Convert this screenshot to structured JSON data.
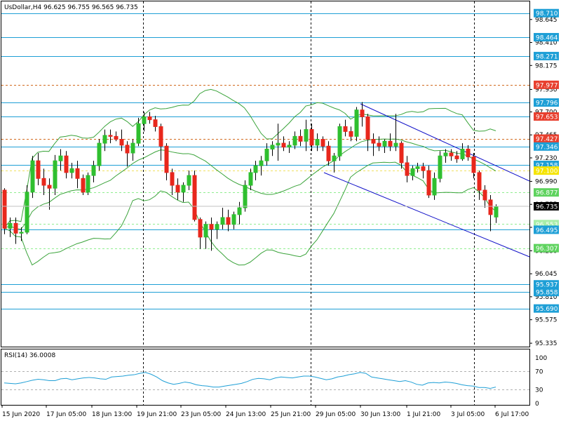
{
  "chart_data": {
    "type": "candlestick",
    "title": "UsDollar,H4  96.625 96.755 96.565 96.735",
    "symbol": "UsDollar,H4",
    "ohlc_readout": "96.625 96.755 96.565 96.735",
    "current_price": "96.735",
    "y_range": [
      95.3,
      98.83
    ],
    "price_ticks": [
      "98.645",
      "98.410",
      "98.175",
      "97.930",
      "97.700",
      "97.465",
      "97.230",
      "96.990",
      "96.755",
      "96.520",
      "96.280",
      "96.045",
      "95.810",
      "95.575",
      "95.335"
    ],
    "x_labels": [
      "15 Jun 2020",
      "17 Jun 05:00",
      "18 Jun 13:00",
      "19 Jun 21:00",
      "23 Jun 05:00",
      "24 Jun 13:00",
      "25 Jun 21:00",
      "29 Jun 05:00",
      "30 Jun 13:00",
      "1 Jul 21:00",
      "3 Jul 05:00",
      "6 Jul 17:00"
    ],
    "levels": [
      {
        "value": 98.71,
        "label": "98.710",
        "style": "solid",
        "color": "#1e9fd6"
      },
      {
        "value": 98.464,
        "label": "98.464",
        "style": "solid",
        "color": "#1e9fd6"
      },
      {
        "value": 98.271,
        "label": "98.271",
        "style": "solid",
        "color": "#1e9fd6"
      },
      {
        "value": 97.977,
        "label": "97.977",
        "style": "dash",
        "color": "#d2691e",
        "tag": "#e8402f"
      },
      {
        "value": 97.796,
        "label": "97.796",
        "style": "solid",
        "color": "#1e9fd6"
      },
      {
        "value": 97.653,
        "label": "97.653",
        "style": "solid",
        "color": "#1e9fd6",
        "tag": "#e8402f"
      },
      {
        "value": 97.427,
        "label": "97.427",
        "style": "dash",
        "color": "#d2691e",
        "tag": "#e8402f"
      },
      {
        "value": 97.346,
        "label": "97.346",
        "style": "solid",
        "color": "#1e9fd6"
      },
      {
        "value": 97.158,
        "label": "97.158",
        "style": "solid",
        "color": "#1e9fd6"
      },
      {
        "value": 97.1,
        "label": "97.100",
        "style": "dash",
        "color": "#f0e060",
        "tag": "#f5e400"
      },
      {
        "value": 96.877,
        "label": "96.877",
        "style": "dash",
        "color": "#90ee90",
        "tag": "#5fd35f"
      },
      {
        "value": 96.553,
        "label": "96.553",
        "style": "dash",
        "color": "#90ee90",
        "tag": "#a8eea8"
      },
      {
        "value": 96.495,
        "label": "96.495",
        "style": "solid",
        "color": "#1e9fd6"
      },
      {
        "value": 96.307,
        "label": "96.307",
        "style": "dash",
        "color": "#90ee90",
        "tag": "#5fd35f"
      },
      {
        "value": 95.937,
        "label": "95.937",
        "style": "solid",
        "color": "#1e9fd6"
      },
      {
        "value": 95.858,
        "label": "95.858",
        "style": "solid",
        "color": "#1e9fd6"
      },
      {
        "value": 95.69,
        "label": "95.690",
        "style": "solid",
        "color": "#1e9fd6"
      }
    ],
    "colors": {
      "bull": "#2fbf2f",
      "bear": "#e8271c",
      "bollinger": "#3aa33a",
      "channel": "#1010c8",
      "level": "#1e9fd6"
    },
    "rsi": {
      "label": "RSI(14) 36.0008",
      "ticks": [
        "100",
        "70",
        "30",
        "0"
      ],
      "values": [
        45,
        44,
        43,
        45,
        48,
        51,
        53,
        52,
        50,
        50,
        54,
        55,
        52,
        54,
        56,
        57,
        56,
        54,
        53,
        58,
        59,
        60,
        62,
        63,
        66,
        68,
        64,
        58,
        50,
        45,
        42,
        44,
        47,
        45,
        41,
        39,
        38,
        36,
        36,
        38,
        40,
        42,
        44,
        48,
        53,
        55,
        54,
        52,
        56,
        58,
        57,
        56,
        58,
        60,
        60,
        58,
        55,
        52,
        54,
        58,
        60,
        63,
        65,
        68,
        66,
        58,
        56,
        54,
        52,
        50,
        48,
        50,
        47,
        42,
        40,
        45,
        46,
        45,
        47,
        46,
        44,
        41,
        39,
        38,
        35,
        35,
        33,
        36
      ]
    },
    "candles": [
      [
        96.9,
        96.92,
        96.45,
        96.51
      ],
      [
        96.51,
        96.62,
        96.42,
        96.56
      ],
      [
        96.56,
        96.62,
        96.35,
        96.46
      ],
      [
        96.46,
        96.52,
        96.38,
        96.47
      ],
      [
        96.47,
        96.95,
        96.45,
        96.88
      ],
      [
        96.88,
        97.25,
        96.82,
        97.2
      ],
      [
        97.2,
        97.28,
        96.95,
        97.02
      ],
      [
        97.02,
        97.12,
        96.85,
        96.95
      ],
      [
        96.95,
        97.02,
        96.7,
        96.92
      ],
      [
        96.92,
        97.26,
        96.85,
        97.2
      ],
      [
        97.2,
        97.32,
        97.1,
        97.25
      ],
      [
        97.25,
        97.3,
        97.02,
        97.08
      ],
      [
        97.08,
        97.18,
        97.02,
        97.12
      ],
      [
        97.12,
        97.2,
        96.92,
        97.02
      ],
      [
        97.02,
        97.06,
        96.85,
        96.88
      ],
      [
        96.88,
        97.08,
        96.85,
        97.05
      ],
      [
        97.05,
        97.2,
        96.98,
        97.15
      ],
      [
        97.15,
        97.42,
        97.1,
        97.38
      ],
      [
        97.38,
        97.52,
        97.3,
        97.46
      ],
      [
        97.46,
        97.52,
        97.38,
        97.45
      ],
      [
        97.45,
        97.5,
        97.4,
        97.42
      ],
      [
        97.42,
        97.52,
        97.3,
        97.36
      ],
      [
        97.36,
        97.4,
        97.14,
        97.28
      ],
      [
        97.28,
        97.42,
        97.2,
        97.38
      ],
      [
        97.38,
        97.64,
        97.35,
        97.58
      ],
      [
        97.58,
        97.7,
        97.5,
        97.65
      ],
      [
        97.65,
        97.7,
        97.58,
        97.62
      ],
      [
        97.62,
        97.66,
        97.5,
        97.55
      ],
      [
        97.55,
        97.58,
        97.2,
        97.35
      ],
      [
        97.35,
        97.38,
        97.0,
        97.08
      ],
      [
        97.08,
        97.12,
        96.85,
        96.95
      ],
      [
        96.95,
        97.02,
        96.8,
        96.88
      ],
      [
        96.88,
        96.98,
        96.78,
        96.95
      ],
      [
        96.95,
        97.1,
        96.9,
        97.05
      ],
      [
        97.05,
        97.1,
        96.58,
        96.6
      ],
      [
        96.6,
        96.62,
        96.3,
        96.42
      ],
      [
        96.42,
        96.58,
        96.3,
        96.55
      ],
      [
        96.55,
        96.62,
        96.28,
        96.5
      ],
      [
        96.5,
        96.58,
        96.4,
        96.55
      ],
      [
        96.55,
        96.72,
        96.5,
        96.62
      ],
      [
        96.62,
        96.7,
        96.48,
        96.55
      ],
      [
        96.55,
        96.68,
        96.5,
        96.65
      ],
      [
        96.65,
        96.78,
        96.55,
        96.72
      ],
      [
        96.72,
        97.0,
        96.68,
        96.95
      ],
      [
        96.95,
        97.12,
        96.9,
        97.08
      ],
      [
        97.08,
        97.2,
        97.0,
        97.15
      ],
      [
        97.15,
        97.25,
        97.05,
        97.2
      ],
      [
        97.2,
        97.38,
        97.15,
        97.32
      ],
      [
        97.32,
        97.4,
        97.25,
        97.36
      ],
      [
        97.36,
        97.58,
        97.2,
        97.38
      ],
      [
        97.38,
        97.45,
        97.3,
        97.34
      ],
      [
        97.34,
        97.4,
        97.28,
        97.36
      ],
      [
        97.36,
        97.5,
        97.32,
        97.45
      ],
      [
        97.45,
        97.52,
        97.35,
        97.4
      ],
      [
        97.4,
        97.62,
        97.3,
        97.52
      ],
      [
        97.52,
        97.58,
        97.3,
        97.36
      ],
      [
        97.36,
        97.48,
        97.3,
        97.42
      ],
      [
        97.42,
        97.45,
        97.3,
        97.35
      ],
      [
        97.35,
        97.4,
        97.15,
        97.2
      ],
      [
        97.2,
        97.28,
        97.08,
        97.25
      ],
      [
        97.25,
        97.58,
        97.2,
        97.55
      ],
      [
        97.55,
        97.62,
        97.45,
        97.5
      ],
      [
        97.5,
        97.55,
        97.4,
        97.45
      ],
      [
        97.45,
        97.75,
        97.4,
        97.72
      ],
      [
        97.72,
        97.8,
        97.55,
        97.65
      ],
      [
        97.65,
        97.68,
        97.3,
        97.42
      ],
      [
        97.42,
        97.48,
        97.25,
        97.38
      ],
      [
        97.38,
        97.45,
        97.3,
        97.35
      ],
      [
        97.35,
        97.42,
        97.28,
        97.4
      ],
      [
        97.4,
        97.48,
        97.3,
        97.35
      ],
      [
        97.35,
        97.68,
        97.3,
        97.38
      ],
      [
        97.38,
        97.4,
        97.12,
        97.18
      ],
      [
        97.18,
        97.25,
        96.98,
        97.05
      ],
      [
        97.05,
        97.15,
        97.0,
        97.12
      ],
      [
        97.12,
        97.18,
        97.08,
        97.14
      ],
      [
        97.14,
        97.18,
        97.02,
        97.1
      ],
      [
        97.1,
        97.15,
        96.82,
        96.85
      ],
      [
        96.85,
        97.08,
        96.8,
        97.02
      ],
      [
        97.02,
        97.3,
        96.98,
        97.25
      ],
      [
        97.25,
        97.32,
        97.18,
        97.28
      ],
      [
        97.28,
        97.32,
        97.2,
        97.25
      ],
      [
        97.25,
        97.3,
        97.18,
        97.22
      ],
      [
        97.22,
        97.38,
        97.2,
        97.32
      ],
      [
        97.32,
        97.36,
        97.2,
        97.24
      ],
      [
        97.24,
        97.28,
        97.02,
        97.08
      ],
      [
        97.08,
        97.1,
        96.8,
        96.9
      ],
      [
        96.9,
        96.95,
        96.72,
        96.8
      ],
      [
        96.8,
        96.85,
        96.48,
        96.65
      ],
      [
        96.625,
        96.755,
        96.565,
        96.735
      ]
    ]
  }
}
